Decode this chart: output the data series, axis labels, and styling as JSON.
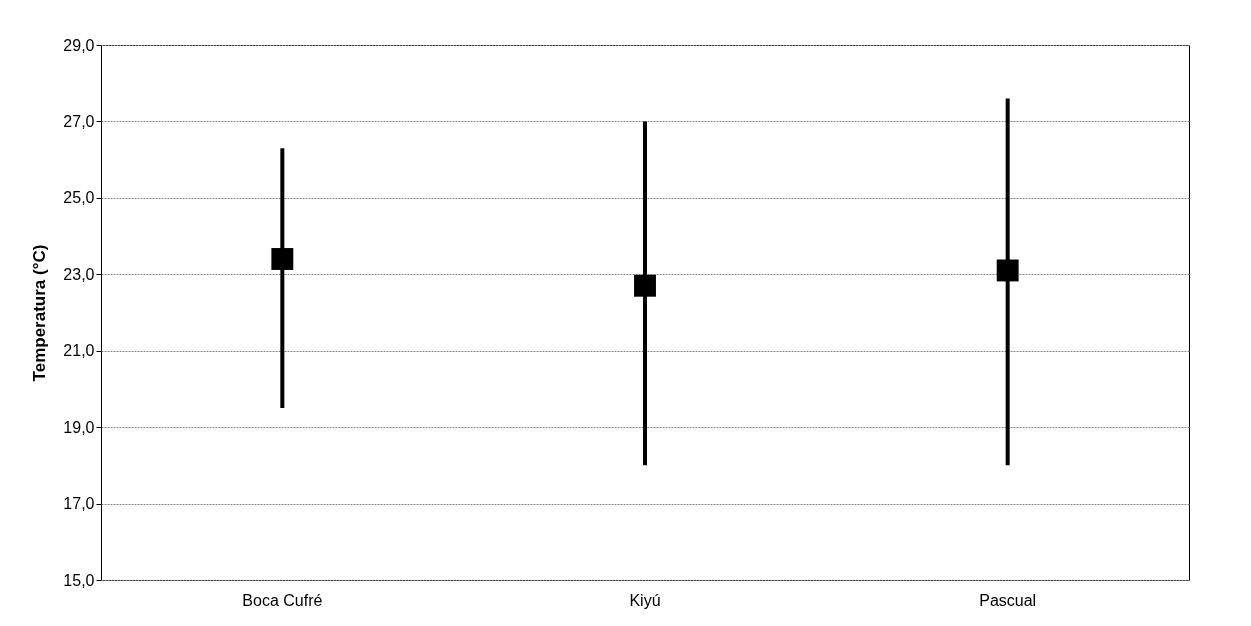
{
  "chart_data": {
    "type": "scatter",
    "ylabel": "Temperatura (°C)",
    "categories": [
      "Boca Cufré",
      "Kiyú",
      "Pascual"
    ],
    "values": [
      23.4,
      22.7,
      23.1
    ],
    "errors": [
      [
        19.5,
        26.3
      ],
      [
        18.0,
        27.0
      ],
      [
        18.0,
        27.6
      ]
    ],
    "color": "#000000",
    "marker": "square",
    "grid": "y",
    "ylim": [
      15,
      29
    ],
    "yticks": [
      {
        "value": 15,
        "label": "15,0"
      },
      {
        "value": 17,
        "label": "17,0"
      },
      {
        "value": 19,
        "label": "19,0"
      },
      {
        "value": 21,
        "label": "21,0"
      },
      {
        "value": 23,
        "label": "23,0"
      },
      {
        "value": 25,
        "label": "25,0"
      },
      {
        "value": 27,
        "label": "27,0"
      },
      {
        "value": 29,
        "label": "29,0"
      }
    ]
  }
}
